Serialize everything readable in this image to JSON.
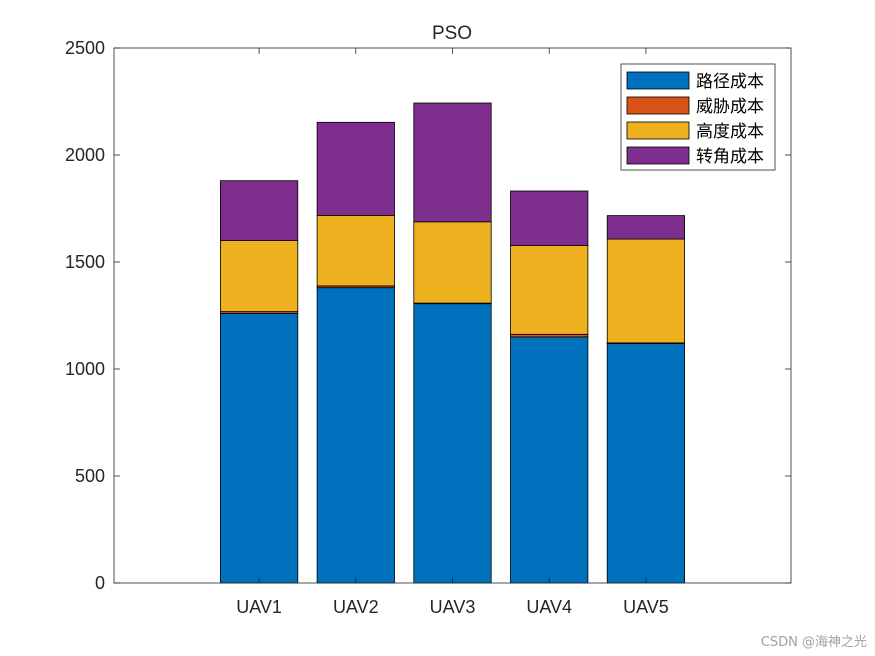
{
  "chart_data": {
    "type": "bar",
    "stacked": true,
    "title": "PSO",
    "categories": [
      "UAV1",
      "UAV2",
      "UAV3",
      "UAV4",
      "UAV5"
    ],
    "series": [
      {
        "name": "路径成本",
        "color": "#0072BD",
        "values": [
          1260,
          1380,
          1305,
          1150,
          1120
        ]
      },
      {
        "name": "威胁成本",
        "color": "#D95319",
        "values": [
          8,
          8,
          3,
          12,
          2
        ]
      },
      {
        "name": "高度成本",
        "color": "#EDB120",
        "values": [
          332,
          330,
          380,
          415,
          485
        ]
      },
      {
        "name": "转角成本",
        "color": "#7E2F8E",
        "values": [
          280,
          435,
          555,
          255,
          110
        ]
      }
    ],
    "ylim": [
      0,
      2500
    ],
    "yticks": [
      "0",
      "500",
      "1000",
      "1500",
      "2000",
      "2500"
    ],
    "grid": false,
    "legend_position": "top-right"
  },
  "watermark": "CSDN @海神之光"
}
